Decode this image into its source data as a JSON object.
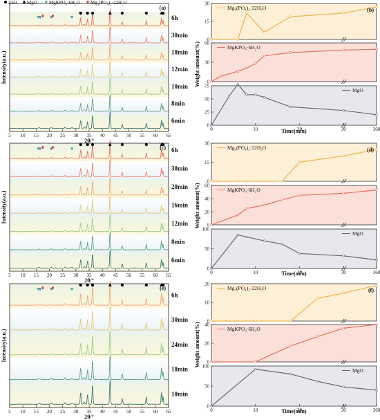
{
  "colors": {
    "zno_marker": "#000000",
    "mgo_marker": "#000000",
    "mgkpo4_marker": "#4a9aa8",
    "mg3po4_marker": "#e03a3a",
    "mg3po4_line": "#ecb34c",
    "mgkpo4_line": "#e2705a",
    "mgo_line": "#6a6a6a",
    "mg3po4_band": "#fdf0d6",
    "mgkpo4_band": "#fbe0da",
    "mgo_band": "#e6e8ee",
    "xrd_colors": [
      "#e8604c",
      "#eb7a62",
      "#f0a070",
      "#e4c66a",
      "#99c880",
      "#4f9a76",
      "#2a6e6c",
      "#253a52"
    ]
  },
  "legend_xrd": {
    "zno": "ZnO",
    "mgo": "MgO",
    "mgkpo4": "MgKPO₄·6H₂O",
    "mg3po4": "Mg₃(PO₄)₂·22H₂O"
  },
  "chart_data": [
    {
      "type": "line",
      "panel": "a",
      "chart": "XRD patterns",
      "xlabel": "2θ/°",
      "ylabel": "Intensity(a.u.)",
      "xlim": [
        5,
        65
      ],
      "xticks": [
        5,
        10,
        15,
        20,
        25,
        30,
        35,
        40,
        45,
        50,
        55,
        60,
        65
      ],
      "series": [
        {
          "name": "6h"
        },
        {
          "name": "30min"
        },
        {
          "name": "18min"
        },
        {
          "name": "12min"
        },
        {
          "name": "10min"
        },
        {
          "name": "8min"
        },
        {
          "name": "6min"
        }
      ]
    },
    {
      "type": "line",
      "panel": "b",
      "chart": "Weight amount vs time",
      "xlabel": "Time(min)",
      "ylabel": "Weight amount(%)",
      "xticks": [
        0,
        10,
        20,
        30,
        360
      ],
      "subplots": [
        {
          "name": "Mg₃(PO₄)₂·22H₂O",
          "ylim": [
            0,
            30
          ],
          "yticks": [
            0,
            15,
            30
          ],
          "x": [
            0,
            6,
            8,
            12,
            18,
            30,
            360
          ],
          "y": [
            0,
            0,
            22,
            6,
            19,
            22,
            27
          ]
        },
        {
          "name": "MgKPO₄·6H₂O",
          "ylim": [
            0,
            60
          ],
          "yticks": [
            0,
            30,
            60
          ],
          "x": [
            0,
            2,
            6,
            8,
            10,
            12,
            18,
            30,
            360
          ],
          "y": [
            0,
            8,
            16,
            21,
            28,
            40,
            45,
            49,
            50
          ]
        },
        {
          "name": "MgO",
          "ylim": [
            0,
            75
          ],
          "yticks": [
            0,
            25,
            50,
            75
          ],
          "x": [
            0,
            4,
            6,
            8,
            10,
            12,
            18,
            30,
            360
          ],
          "y": [
            0,
            55,
            78,
            58,
            58,
            53,
            35,
            28,
            20
          ]
        }
      ]
    },
    {
      "type": "line",
      "panel": "c",
      "chart": "XRD patterns",
      "xlabel": "2θ/°",
      "ylabel": "Intensity(a.u.)",
      "xlim": [
        5,
        65
      ],
      "xticks": [
        5,
        10,
        15,
        20,
        25,
        30,
        35,
        40,
        45,
        50,
        55,
        60,
        65
      ],
      "series": [
        {
          "name": "6h"
        },
        {
          "name": "30min"
        },
        {
          "name": "20min"
        },
        {
          "name": "16min"
        },
        {
          "name": "12min"
        },
        {
          "name": "8min"
        },
        {
          "name": "6min"
        }
      ]
    },
    {
      "type": "line",
      "panel": "d",
      "chart": "Weight amount vs time",
      "xlabel": "Time(min)",
      "ylabel": "Weight amount(%)",
      "xticks": [
        0,
        10,
        20,
        30,
        360
      ],
      "subplots": [
        {
          "name": "Mg₃(PO₄)₂·22H₂O",
          "ylim": [
            0,
            30
          ],
          "yticks": [
            0,
            15,
            30
          ],
          "x": [
            0,
            6,
            8,
            12,
            16,
            20,
            30,
            360
          ],
          "y": [
            0,
            0,
            0,
            0,
            0,
            15,
            20,
            25
          ]
        },
        {
          "name": "MgKPO₄·6H₂O",
          "ylim": [
            0,
            60
          ],
          "yticks": [
            0,
            20,
            40,
            60
          ],
          "x": [
            0,
            6,
            8,
            12,
            16,
            20,
            30,
            360
          ],
          "y": [
            0,
            15,
            25,
            30,
            38,
            45,
            48,
            53
          ]
        },
        {
          "name": "MgO",
          "ylim": [
            0,
            100
          ],
          "yticks": [
            0,
            50,
            100
          ],
          "x": [
            0,
            6,
            8,
            12,
            16,
            20,
            30,
            360
          ],
          "y": [
            0,
            85,
            80,
            70,
            62,
            38,
            32,
            22
          ]
        }
      ]
    },
    {
      "type": "line",
      "panel": "e",
      "chart": "XRD patterns",
      "xlabel": "2θ/°",
      "ylabel": "Intensity(a.u.)",
      "xlim": [
        5,
        65
      ],
      "xticks": [
        5,
        10,
        15,
        20,
        25,
        30,
        35,
        40,
        45,
        50,
        55,
        60,
        65
      ],
      "series": [
        {
          "name": "6h"
        },
        {
          "name": "30min"
        },
        {
          "name": "24min"
        },
        {
          "name": "18min"
        },
        {
          "name": "10min"
        }
      ]
    },
    {
      "type": "line",
      "panel": "f",
      "chart": "Weight amount vs time",
      "xlabel": "Time(min)",
      "ylabel": "Weight amount(%)",
      "xticks": [
        0,
        10,
        20,
        30,
        360
      ],
      "subplots": [
        {
          "name": "Mg₃(PO₄)₂·22H₂O",
          "ylim": [
            0,
            20
          ],
          "yticks": [
            0,
            10,
            20
          ],
          "x": [
            0,
            10,
            18,
            24,
            30,
            360
          ],
          "y": [
            0,
            0,
            0,
            12,
            15,
            19
          ]
        },
        {
          "name": "MgKPO₄·6H₂O",
          "ylim": [
            0,
            40
          ],
          "yticks": [
            0,
            20,
            40
          ],
          "x": [
            0,
            10,
            18,
            24,
            30,
            360
          ],
          "y": [
            0,
            0,
            17,
            27,
            36,
            40
          ]
        },
        {
          "name": "MgO",
          "ylim": [
            0,
            100
          ],
          "yticks": [
            0,
            50,
            100
          ],
          "x": [
            0,
            10,
            18,
            24,
            30,
            360
          ],
          "y": [
            0,
            92,
            80,
            62,
            48,
            40
          ]
        }
      ]
    }
  ]
}
